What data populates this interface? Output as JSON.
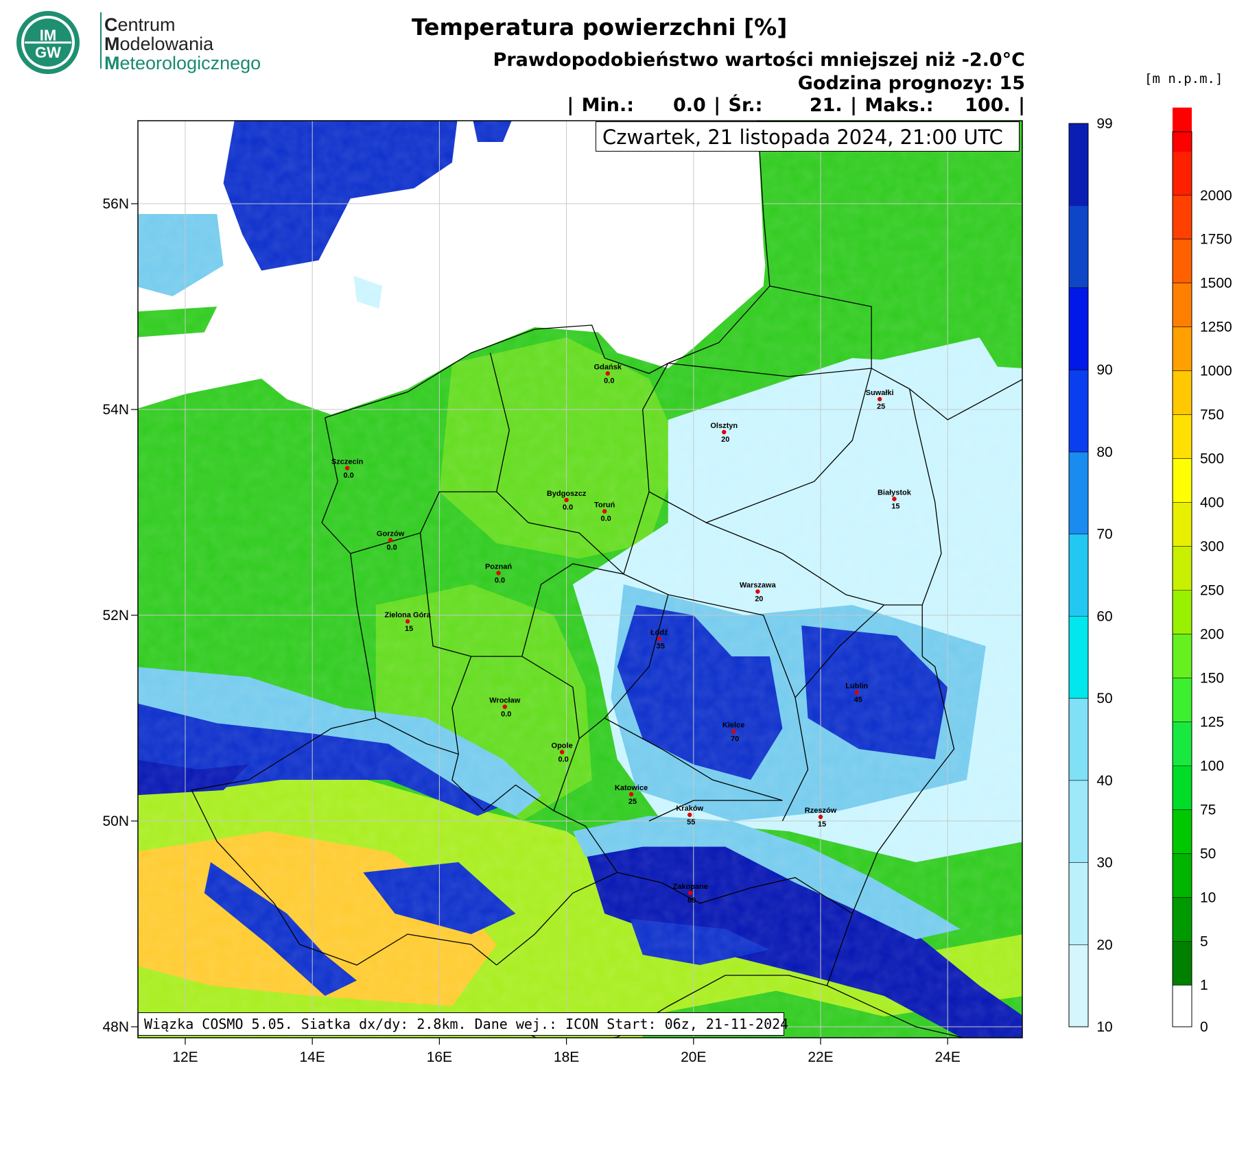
{
  "header": {
    "title": "Temperatura powierzchni [%]",
    "subtitle": "Prawdopodobieństwo wartości mniejszej niż -2.0°C",
    "forecast_hour": "Godzina prognozy: 15",
    "stats": "| Min.:     0.0 | Śr.:      21. | Maks.:    100. |",
    "date": "Czwartek, 21 listopada 2024, 21:00 UTC"
  },
  "logo": {
    "line1_initial": "C",
    "line1_rest": "entrum",
    "line2_initial": "M",
    "line2_rest": "odelowania",
    "line3_initial": "M",
    "line3_rest": "eteorologicznego",
    "badge_top": "IM",
    "badge_bottom": "GW",
    "color_text": "#222222",
    "color_accent": "#1a8a72"
  },
  "footer": "Wiązka COSMO 5.05. Siatka dx/dy: 2.8km. Dane wej.: ICON Start: 06z, 21-11-2024",
  "axes": {
    "lat_labels": [
      "56N",
      "54N",
      "52N",
      "50N",
      "48N"
    ],
    "lat_values": [
      56,
      54,
      52,
      50,
      48
    ],
    "lon_labels": [
      "12E",
      "14E",
      "16E",
      "18E",
      "20E",
      "22E",
      "24E"
    ],
    "lon_values": [
      12,
      14,
      16,
      18,
      20,
      22,
      24
    ]
  },
  "cities": [
    {
      "name": "Gdańsk",
      "value": "0.0",
      "lon": 18.65,
      "lat": 54.35
    },
    {
      "name": "Suwałki",
      "value": "25",
      "lon": 22.93,
      "lat": 54.1
    },
    {
      "name": "Olsztyn",
      "value": "20",
      "lon": 20.48,
      "lat": 53.78
    },
    {
      "name": "Szczecin",
      "value": "0.0",
      "lon": 14.55,
      "lat": 53.43
    },
    {
      "name": "Białystok",
      "value": "15",
      "lon": 23.16,
      "lat": 53.13
    },
    {
      "name": "Bydgoszcz",
      "value": "0.0",
      "lon": 18.0,
      "lat": 53.12
    },
    {
      "name": "Toruń",
      "value": "0.0",
      "lon": 18.6,
      "lat": 53.01
    },
    {
      "name": "Gorzów",
      "value": "0.0",
      "lon": 15.23,
      "lat": 52.73
    },
    {
      "name": "Poznań",
      "value": "0.0",
      "lon": 16.93,
      "lat": 52.41
    },
    {
      "name": "Warszawa",
      "value": "20",
      "lon": 21.01,
      "lat": 52.23
    },
    {
      "name": "Zielona Góra",
      "value": "15",
      "lon": 15.5,
      "lat": 51.94
    },
    {
      "name": "Łódź",
      "value": "35",
      "lon": 19.46,
      "lat": 51.77
    },
    {
      "name": "Lublin",
      "value": "45",
      "lon": 22.57,
      "lat": 51.25
    },
    {
      "name": "Wrocław",
      "value": "0.0",
      "lon": 17.03,
      "lat": 51.11
    },
    {
      "name": "Kielce",
      "value": "70",
      "lon": 20.63,
      "lat": 50.87
    },
    {
      "name": "Opole",
      "value": "0.0",
      "lon": 17.93,
      "lat": 50.67
    },
    {
      "name": "Katowice",
      "value": "25",
      "lon": 19.02,
      "lat": 50.26
    },
    {
      "name": "Rzeszów",
      "value": "15",
      "lon": 22.0,
      "lat": 50.04
    },
    {
      "name": "Kraków",
      "value": "55",
      "lon": 19.94,
      "lat": 50.06
    },
    {
      "name": "Zakopane",
      "value": "80",
      "lon": 19.95,
      "lat": 49.3
    }
  ],
  "probability_scale": {
    "ticks": [
      "10",
      "20",
      "30",
      "40",
      "50",
      "60",
      "70",
      "80",
      "90",
      "99"
    ],
    "colors": [
      "#d4f6fc",
      "#bcf0fb",
      "#9ee8f9",
      "#7fe0f6",
      "#00e8ee",
      "#22c8f2",
      "#1a8cf0",
      "#0a3ff0",
      "#0018e8",
      "#0f46c8",
      "#0a1eb4"
    ]
  },
  "elevation_scale": {
    "unit": "[m n.p.m.]",
    "ticks": [
      "0",
      "1",
      "5",
      "10",
      "50",
      "75",
      "100",
      "125",
      "150",
      "200",
      "250",
      "300",
      "400",
      "500",
      "750",
      "1000",
      "1250",
      "1500",
      "1750",
      "2000"
    ],
    "colors": [
      "#ffffff",
      "#007f00",
      "#009a00",
      "#00b400",
      "#00c800",
      "#00dc28",
      "#18e840",
      "#3cf030",
      "#66f020",
      "#99f000",
      "#c8f000",
      "#e8f000",
      "#ffff00",
      "#ffe000",
      "#ffc800",
      "#ffa000",
      "#ff8000",
      "#ff6000",
      "#ff4000",
      "#ff2000",
      "#ff0000"
    ]
  },
  "map_colors": {
    "sea": "#ffffff",
    "low_land": "#33cc22",
    "plain": "#66dd22",
    "upland": "#aaee22",
    "mountain": "#ffcc33",
    "prob_low": "#ccf5ff",
    "prob_mid": "#77ccee",
    "prob_high": "#1133cc",
    "prob_max": "#0a1ab4",
    "city_dot": "#e00000"
  }
}
